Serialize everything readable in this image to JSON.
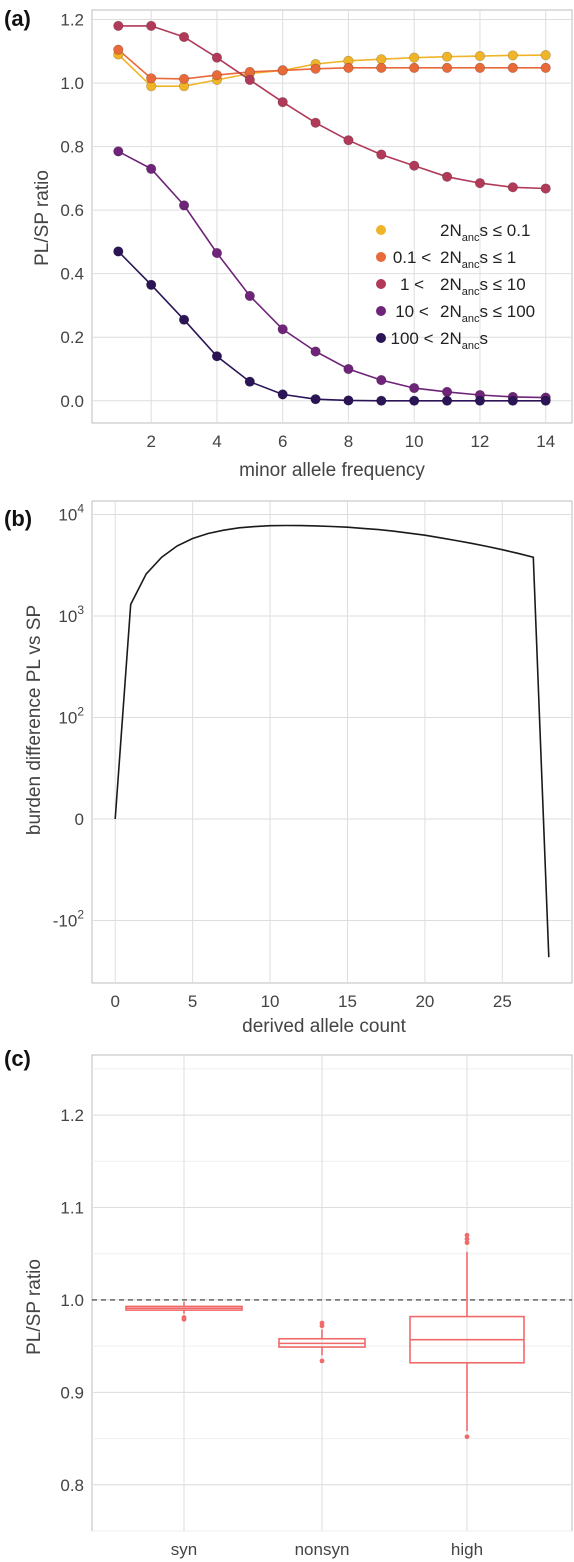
{
  "chart_data": [
    {
      "panel": "(a)",
      "type": "line",
      "xlabel": "minor allele frequency",
      "ylabel": "PL/SP ratio",
      "xlim": [
        0.2,
        14.8
      ],
      "ylim": [
        -0.07,
        1.23
      ],
      "xticks": [
        2,
        4,
        6,
        8,
        10,
        12,
        14
      ],
      "yticks": [
        0.0,
        0.2,
        0.4,
        0.6,
        0.8,
        1.0,
        1.2
      ],
      "ytick_labels": [
        "0.0",
        "0.2",
        "0.4",
        "0.6",
        "0.8",
        "1.0",
        "1.2"
      ],
      "grid": true,
      "legend_position": "center-right",
      "x": [
        1,
        2,
        3,
        4,
        5,
        6,
        7,
        8,
        9,
        10,
        11,
        12,
        13,
        14
      ],
      "series": [
        {
          "legend_lhs": "",
          "legend_core": "2N",
          "legend_sub": "anc",
          "legend_rhs": "s ≤ 0.1",
          "color": "#f0b429",
          "values": [
            1.09,
            0.99,
            0.99,
            1.01,
            1.03,
            1.04,
            1.06,
            1.07,
            1.075,
            1.08,
            1.083,
            1.085,
            1.087,
            1.088
          ]
        },
        {
          "legend_lhs": "0.1 <",
          "legend_core": "2N",
          "legend_sub": "anc",
          "legend_rhs": "s ≤ 1",
          "color": "#e8693a",
          "values": [
            1.105,
            1.015,
            1.013,
            1.025,
            1.035,
            1.04,
            1.045,
            1.048,
            1.048,
            1.048,
            1.048,
            1.048,
            1.048,
            1.048
          ]
        },
        {
          "legend_lhs": "1 <",
          "legend_core": "2N",
          "legend_sub": "anc",
          "legend_rhs": "s ≤ 10",
          "color": "#b03a58",
          "values": [
            1.18,
            1.18,
            1.145,
            1.08,
            1.01,
            0.94,
            0.875,
            0.82,
            0.775,
            0.74,
            0.705,
            0.685,
            0.672,
            0.668
          ]
        },
        {
          "legend_lhs": "10 <",
          "legend_core": "2N",
          "legend_sub": "anc",
          "legend_rhs": "s ≤ 100",
          "color": "#6e2478",
          "values": [
            0.785,
            0.73,
            0.615,
            0.465,
            0.33,
            0.225,
            0.155,
            0.1,
            0.065,
            0.04,
            0.028,
            0.018,
            0.012,
            0.01
          ]
        },
        {
          "legend_lhs": "100 <",
          "legend_core": "2N",
          "legend_sub": "anc",
          "legend_rhs": "s",
          "color": "#2b1557",
          "values": [
            0.47,
            0.365,
            0.255,
            0.14,
            0.06,
            0.02,
            0.005,
            0.001,
            0.0,
            0.0,
            0.0,
            0.0,
            0.0,
            0.0
          ]
        }
      ]
    },
    {
      "panel": "(b)",
      "type": "line",
      "xlabel": "derived allele count",
      "ylabel": "burden difference PL vs SP",
      "xlim": [
        -1.5,
        29.5
      ],
      "yscale": "symlog",
      "xticks": [
        0,
        5,
        10,
        15,
        20,
        25
      ],
      "yticks": [
        -100,
        0,
        100,
        1000,
        10000
      ],
      "ytick_labels": [
        {
          "base": "-10",
          "exp": "2"
        },
        {
          "base": "0",
          "exp": ""
        },
        {
          "base": "10",
          "exp": "2"
        },
        {
          "base": "10",
          "exp": "3"
        },
        {
          "base": "10",
          "exp": "4"
        }
      ],
      "grid": true,
      "color": "#1a1a1a",
      "x": [
        0,
        1,
        2,
        3,
        4,
        5,
        6,
        7,
        8,
        9,
        10,
        11,
        12,
        13,
        14,
        15,
        16,
        17,
        18,
        19,
        20,
        21,
        22,
        23,
        24,
        25,
        26,
        27,
        28
      ],
      "y": [
        0,
        1300,
        2600,
        3800,
        4900,
        5800,
        6500,
        7000,
        7400,
        7600,
        7750,
        7800,
        7780,
        7720,
        7620,
        7500,
        7300,
        7100,
        6850,
        6550,
        6250,
        5900,
        5550,
        5200,
        4850,
        4500,
        4150,
        3800,
        -230
      ]
    },
    {
      "panel": "(c)",
      "type": "box",
      "xlabel": "",
      "ylabel": "PL/SP ratio",
      "ylim": [
        0.75,
        1.265
      ],
      "yticks": [
        0.8,
        0.9,
        1.0,
        1.1,
        1.2
      ],
      "ytick_labels": [
        "0.8",
        "0.9",
        "1.0",
        "1.1",
        "1.2"
      ],
      "reference_line": 1.0,
      "grid": true,
      "color": "#f06a6a",
      "categories": [
        "syn",
        "nonsyn",
        "high"
      ],
      "boxes": [
        {
          "q1": 0.989,
          "median": 0.991,
          "q3": 0.993,
          "whisker_low": 0.985,
          "whisker_high": 0.998,
          "outliers": [
            0.981,
            0.979
          ]
        },
        {
          "q1": 0.949,
          "median": 0.953,
          "q3": 0.958,
          "whisker_low": 0.94,
          "whisker_high": 0.968,
          "outliers": [
            0.934,
            0.972,
            0.975
          ]
        },
        {
          "q1": 0.932,
          "median": 0.957,
          "q3": 0.982,
          "whisker_low": 0.858,
          "whisker_high": 1.052,
          "outliers": [
            0.852,
            1.062,
            1.066,
            1.07
          ]
        }
      ]
    }
  ]
}
